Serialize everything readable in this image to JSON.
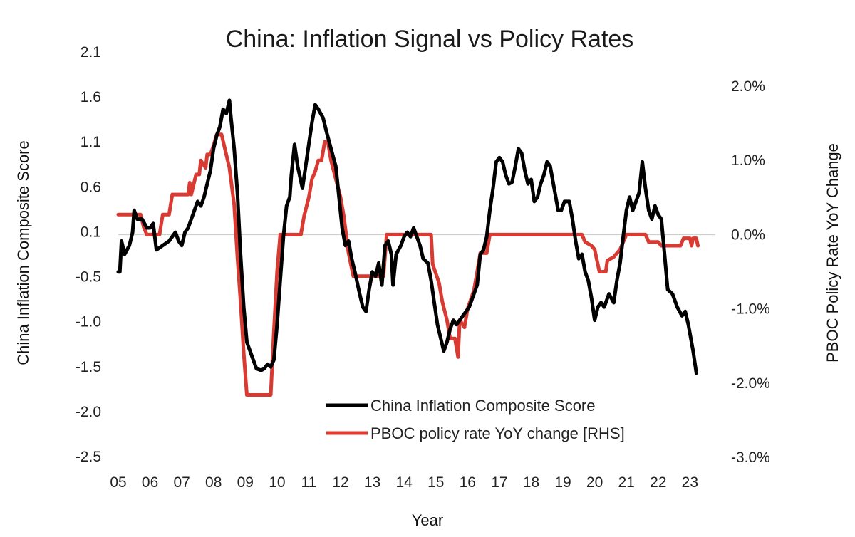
{
  "chart_data": {
    "type": "line",
    "title": "China: Inflation Signal vs Policy Rates",
    "xlabel": "Year",
    "ylabel": "China Inflation Composite Score",
    "y2label": "PBOC Policy Rate YoY Change",
    "xlim": [
      2005.0,
      2023.8
    ],
    "ylim": [
      -2.5,
      2.1
    ],
    "y2lim": [
      -3.0,
      2.0
    ],
    "x_ticks": [
      "05",
      "06",
      "07",
      "08",
      "09",
      "10",
      "11",
      "12",
      "13",
      "14",
      "15",
      "16",
      "17",
      "18",
      "19",
      "20",
      "21",
      "22",
      "23"
    ],
    "y_ticks": [
      "2.1",
      "1.6",
      "1.1",
      "0.6",
      "0.1",
      "-0.5",
      "-1.0",
      "-1.5",
      "-2.0",
      "-2.5"
    ],
    "y2_ticks": [
      "2.0%",
      "1.0%",
      "0.0%",
      "-1.0%",
      "-2.0%",
      "-3.0%"
    ],
    "gridline_at_y2": 0.0,
    "legend_position": "bottom-center",
    "series": [
      {
        "name": "China Inflation Composite Score",
        "axis": "left",
        "color": "#000000",
        "points": [
          [
            2005.0,
            -0.4
          ],
          [
            2005.05,
            -0.4
          ],
          [
            2005.1,
            -0.05
          ],
          [
            2005.2,
            -0.2
          ],
          [
            2005.35,
            -0.1
          ],
          [
            2005.45,
            0.05
          ],
          [
            2005.5,
            0.3
          ],
          [
            2005.6,
            0.2
          ],
          [
            2005.75,
            0.2
          ],
          [
            2005.9,
            0.1
          ],
          [
            2006.0,
            0.1
          ],
          [
            2006.1,
            0.15
          ],
          [
            2006.2,
            -0.15
          ],
          [
            2006.4,
            -0.1
          ],
          [
            2006.6,
            -0.05
          ],
          [
            2006.8,
            0.05
          ],
          [
            2006.9,
            -0.05
          ],
          [
            2007.0,
            -0.1
          ],
          [
            2007.1,
            0.05
          ],
          [
            2007.2,
            0.1
          ],
          [
            2007.3,
            0.2
          ],
          [
            2007.5,
            0.4
          ],
          [
            2007.6,
            0.35
          ],
          [
            2007.7,
            0.45
          ],
          [
            2007.8,
            0.6
          ],
          [
            2007.9,
            0.75
          ],
          [
            2008.0,
            1.0
          ],
          [
            2008.1,
            1.15
          ],
          [
            2008.2,
            1.25
          ],
          [
            2008.3,
            1.45
          ],
          [
            2008.4,
            1.4
          ],
          [
            2008.5,
            1.55
          ],
          [
            2008.55,
            1.35
          ],
          [
            2008.65,
            1.0
          ],
          [
            2008.75,
            0.5
          ],
          [
            2008.85,
            -0.2
          ],
          [
            2008.95,
            -0.8
          ],
          [
            2009.05,
            -1.2
          ],
          [
            2009.2,
            -1.35
          ],
          [
            2009.35,
            -1.5
          ],
          [
            2009.5,
            -1.52
          ],
          [
            2009.6,
            -1.5
          ],
          [
            2009.7,
            -1.45
          ],
          [
            2009.8,
            -1.48
          ],
          [
            2009.9,
            -1.4
          ],
          [
            2010.0,
            -1.0
          ],
          [
            2010.1,
            -0.5
          ],
          [
            2010.2,
            0.0
          ],
          [
            2010.3,
            0.35
          ],
          [
            2010.4,
            0.45
          ],
          [
            2010.45,
            0.7
          ],
          [
            2010.55,
            1.05
          ],
          [
            2010.65,
            0.8
          ],
          [
            2010.8,
            0.55
          ],
          [
            2010.9,
            0.8
          ],
          [
            2011.0,
            1.05
          ],
          [
            2011.1,
            1.3
          ],
          [
            2011.2,
            1.5
          ],
          [
            2011.3,
            1.45
          ],
          [
            2011.45,
            1.35
          ],
          [
            2011.55,
            1.2
          ],
          [
            2011.7,
            1.0
          ],
          [
            2011.85,
            0.8
          ],
          [
            2011.95,
            0.45
          ],
          [
            2012.05,
            0.1
          ],
          [
            2012.15,
            -0.1
          ],
          [
            2012.25,
            -0.05
          ],
          [
            2012.35,
            -0.25
          ],
          [
            2012.45,
            -0.4
          ],
          [
            2012.6,
            -0.65
          ],
          [
            2012.7,
            -0.8
          ],
          [
            2012.8,
            -0.85
          ],
          [
            2012.9,
            -0.6
          ],
          [
            2013.0,
            -0.4
          ],
          [
            2013.1,
            -0.45
          ],
          [
            2013.2,
            -0.3
          ],
          [
            2013.3,
            -0.55
          ],
          [
            2013.4,
            -0.1
          ],
          [
            2013.5,
            -0.05
          ],
          [
            2013.6,
            -0.2
          ],
          [
            2013.65,
            -0.55
          ],
          [
            2013.75,
            -0.2
          ],
          [
            2013.9,
            -0.1
          ],
          [
            2014.0,
            0.0
          ],
          [
            2014.1,
            0.05
          ],
          [
            2014.2,
            0.0
          ],
          [
            2014.3,
            0.1
          ],
          [
            2014.4,
            0.0
          ],
          [
            2014.5,
            -0.1
          ],
          [
            2014.6,
            -0.25
          ],
          [
            2014.75,
            -0.3
          ],
          [
            2014.85,
            -0.5
          ],
          [
            2014.95,
            -0.75
          ],
          [
            2015.05,
            -1.0
          ],
          [
            2015.15,
            -1.15
          ],
          [
            2015.25,
            -1.3
          ],
          [
            2015.35,
            -1.2
          ],
          [
            2015.45,
            -1.05
          ],
          [
            2015.55,
            -0.95
          ],
          [
            2015.65,
            -1.0
          ],
          [
            2015.75,
            -0.95
          ],
          [
            2015.85,
            -0.9
          ],
          [
            2015.95,
            -0.85
          ],
          [
            2016.05,
            -0.8
          ],
          [
            2016.15,
            -0.7
          ],
          [
            2016.3,
            -0.55
          ],
          [
            2016.4,
            -0.2
          ],
          [
            2016.5,
            -0.15
          ],
          [
            2016.6,
            0.0
          ],
          [
            2016.7,
            0.3
          ],
          [
            2016.8,
            0.55
          ],
          [
            2016.9,
            0.85
          ],
          [
            2017.0,
            0.9
          ],
          [
            2017.1,
            0.85
          ],
          [
            2017.2,
            0.7
          ],
          [
            2017.3,
            0.6
          ],
          [
            2017.4,
            0.62
          ],
          [
            2017.5,
            0.8
          ],
          [
            2017.6,
            1.0
          ],
          [
            2017.7,
            0.95
          ],
          [
            2017.8,
            0.75
          ],
          [
            2017.9,
            0.6
          ],
          [
            2018.0,
            0.65
          ],
          [
            2018.1,
            0.4
          ],
          [
            2018.2,
            0.45
          ],
          [
            2018.3,
            0.6
          ],
          [
            2018.4,
            0.7
          ],
          [
            2018.5,
            0.85
          ],
          [
            2018.6,
            0.8
          ],
          [
            2018.75,
            0.5
          ],
          [
            2018.85,
            0.3
          ],
          [
            2018.95,
            0.3
          ],
          [
            2019.05,
            0.4
          ],
          [
            2019.2,
            0.4
          ],
          [
            2019.3,
            0.2
          ],
          [
            2019.4,
            -0.05
          ],
          [
            2019.5,
            -0.25
          ],
          [
            2019.6,
            -0.2
          ],
          [
            2019.7,
            -0.4
          ],
          [
            2019.8,
            -0.5
          ],
          [
            2019.9,
            -0.7
          ],
          [
            2020.0,
            -0.95
          ],
          [
            2020.1,
            -0.8
          ],
          [
            2020.2,
            -0.75
          ],
          [
            2020.3,
            -0.8
          ],
          [
            2020.45,
            -0.65
          ],
          [
            2020.6,
            -0.75
          ],
          [
            2020.7,
            -0.5
          ],
          [
            2020.8,
            -0.3
          ],
          [
            2020.9,
            0.0
          ],
          [
            2021.0,
            0.3
          ],
          [
            2021.1,
            0.45
          ],
          [
            2021.2,
            0.3
          ],
          [
            2021.3,
            0.4
          ],
          [
            2021.4,
            0.5
          ],
          [
            2021.5,
            0.85
          ],
          [
            2021.6,
            0.55
          ],
          [
            2021.7,
            0.3
          ],
          [
            2021.8,
            0.2
          ],
          [
            2021.9,
            0.35
          ],
          [
            2022.0,
            0.25
          ],
          [
            2022.1,
            0.2
          ],
          [
            2022.2,
            -0.2
          ],
          [
            2022.3,
            -0.6
          ],
          [
            2022.45,
            -0.65
          ],
          [
            2022.6,
            -0.8
          ],
          [
            2022.75,
            -0.9
          ],
          [
            2022.85,
            -0.85
          ],
          [
            2022.95,
            -1.0
          ],
          [
            2023.1,
            -1.3
          ],
          [
            2023.2,
            -1.55
          ]
        ]
      },
      {
        "name": "PBOC policy rate YoY change [RHS]",
        "axis": "right",
        "color": "#d93a32",
        "points": [
          [
            2005.0,
            0.27
          ],
          [
            2005.7,
            0.27
          ],
          [
            2005.8,
            0.1
          ],
          [
            2005.9,
            0.0
          ],
          [
            2006.3,
            0.0
          ],
          [
            2006.4,
            0.27
          ],
          [
            2006.6,
            0.27
          ],
          [
            2006.7,
            0.54
          ],
          [
            2007.2,
            0.54
          ],
          [
            2007.25,
            0.7
          ],
          [
            2007.3,
            0.54
          ],
          [
            2007.45,
            0.81
          ],
          [
            2007.55,
            0.81
          ],
          [
            2007.6,
            1.0
          ],
          [
            2007.75,
            0.9
          ],
          [
            2007.8,
            1.08
          ],
          [
            2007.9,
            1.08
          ],
          [
            2008.0,
            1.2
          ],
          [
            2008.1,
            1.35
          ],
          [
            2008.25,
            1.35
          ],
          [
            2008.4,
            1.08
          ],
          [
            2008.5,
            0.9
          ],
          [
            2008.65,
            0.4
          ],
          [
            2008.75,
            -0.3
          ],
          [
            2008.85,
            -0.9
          ],
          [
            2008.95,
            -1.6
          ],
          [
            2009.05,
            -2.16
          ],
          [
            2009.8,
            -2.16
          ],
          [
            2009.9,
            -1.3
          ],
          [
            2010.0,
            -0.5
          ],
          [
            2010.1,
            0.0
          ],
          [
            2010.75,
            0.0
          ],
          [
            2010.85,
            0.25
          ],
          [
            2011.0,
            0.5
          ],
          [
            2011.1,
            0.75
          ],
          [
            2011.2,
            0.85
          ],
          [
            2011.3,
            1.0
          ],
          [
            2011.4,
            1.0
          ],
          [
            2011.5,
            1.25
          ],
          [
            2011.6,
            1.25
          ],
          [
            2011.7,
            1.0
          ],
          [
            2011.85,
            0.75
          ],
          [
            2012.0,
            0.5
          ],
          [
            2012.1,
            0.25
          ],
          [
            2012.25,
            -0.25
          ],
          [
            2012.4,
            -0.56
          ],
          [
            2013.35,
            -0.56
          ],
          [
            2013.45,
            0.0
          ],
          [
            2014.85,
            0.0
          ],
          [
            2014.9,
            -0.4
          ],
          [
            2015.1,
            -0.65
          ],
          [
            2015.2,
            -0.9
          ],
          [
            2015.35,
            -1.15
          ],
          [
            2015.45,
            -1.4
          ],
          [
            2015.6,
            -1.4
          ],
          [
            2015.7,
            -1.65
          ],
          [
            2015.75,
            -1.15
          ],
          [
            2015.9,
            -1.25
          ],
          [
            2016.0,
            -1.0
          ],
          [
            2016.2,
            -0.75
          ],
          [
            2016.3,
            -0.5
          ],
          [
            2016.4,
            -0.25
          ],
          [
            2016.6,
            -0.25
          ],
          [
            2016.7,
            0.0
          ],
          [
            2019.6,
            0.0
          ],
          [
            2019.7,
            -0.1
          ],
          [
            2019.9,
            -0.15
          ],
          [
            2020.0,
            -0.2
          ],
          [
            2020.15,
            -0.5
          ],
          [
            2020.35,
            -0.5
          ],
          [
            2020.4,
            -0.35
          ],
          [
            2020.6,
            -0.3
          ],
          [
            2020.8,
            -0.2
          ],
          [
            2020.9,
            -0.1
          ],
          [
            2021.0,
            0.0
          ],
          [
            2021.6,
            0.0
          ],
          [
            2021.7,
            -0.1
          ],
          [
            2022.0,
            -0.1
          ],
          [
            2022.1,
            -0.15
          ],
          [
            2022.7,
            -0.15
          ],
          [
            2022.75,
            -0.1
          ],
          [
            2022.8,
            -0.05
          ],
          [
            2022.9,
            -0.05
          ],
          [
            2023.0,
            -0.05
          ],
          [
            2023.05,
            -0.15
          ],
          [
            2023.1,
            -0.05
          ],
          [
            2023.2,
            -0.05
          ],
          [
            2023.25,
            -0.15
          ]
        ]
      }
    ]
  }
}
